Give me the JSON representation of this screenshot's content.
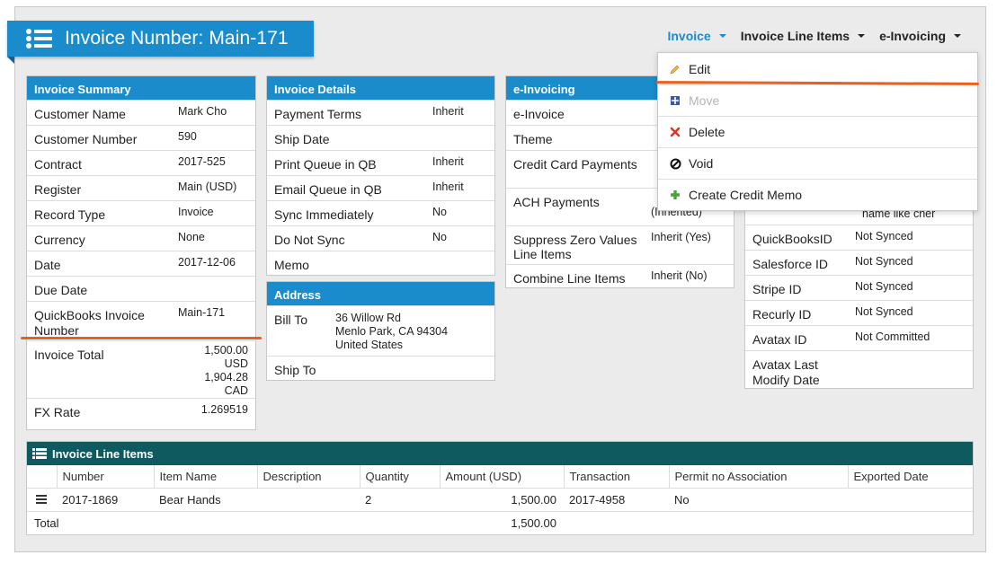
{
  "title": "Invoice Number: Main-171",
  "nav": {
    "invoice": "Invoice",
    "line_items": "Invoice Line Items",
    "einvoicing": "e-Invoicing"
  },
  "dropdown": {
    "edit": "Edit",
    "move": "Move",
    "delete": "Delete",
    "void": "Void",
    "credit_memo": "Create Credit Memo"
  },
  "summary": {
    "header": "Invoice Summary",
    "rows": [
      {
        "label": "Customer Name",
        "value": "Mark Cho"
      },
      {
        "label": "Customer Number",
        "value": "590"
      },
      {
        "label": "Contract",
        "value": "2017-525"
      },
      {
        "label": "Register",
        "value": "Main (USD)"
      },
      {
        "label": "Record Type",
        "value": "Invoice"
      },
      {
        "label": "Currency",
        "value": "None"
      },
      {
        "label": "Date",
        "value": "2017-12-06"
      },
      {
        "label": "Due Date",
        "value": ""
      },
      {
        "label": "QuickBooks Invoice Number",
        "value": "Main-171"
      },
      {
        "label": "Invoice Total",
        "value": "1,500.00 USD 1,904.28 CAD"
      },
      {
        "label": "FX Rate",
        "value": "1.269519"
      }
    ],
    "total_lines": [
      "1,500.00",
      "USD",
      "1,904.28",
      "CAD"
    ]
  },
  "details": {
    "header": "Invoice Details",
    "rows": [
      {
        "label": "Payment Terms",
        "value": "Inherit"
      },
      {
        "label": "Ship Date",
        "value": ""
      },
      {
        "label": "Print Queue in QB",
        "value": "Inherit"
      },
      {
        "label": "Email Queue in QB",
        "value": "Inherit"
      },
      {
        "label": "Sync Immediately",
        "value": "No"
      },
      {
        "label": "Do Not Sync",
        "value": "No"
      },
      {
        "label": "Memo",
        "value": ""
      }
    ]
  },
  "address": {
    "header": "Address",
    "bill_to_label": "Bill To",
    "bill_to_lines": [
      "36 Willow Rd",
      "Menlo Park, CA  94304",
      "United States"
    ],
    "ship_to_label": "Ship To"
  },
  "einvoicing": {
    "header": "e-Invoicing",
    "rows": [
      {
        "label": "e-Invoice",
        "value": ""
      },
      {
        "label": "Theme",
        "value": ""
      },
      {
        "label": "Credit Card Payments",
        "value": ""
      },
      {
        "label": "ACH Payments",
        "value": "(Inherited)"
      },
      {
        "label": "Suppress Zero Values Line Items",
        "value": "Inherit (Yes)"
      },
      {
        "label": "Combine Line Items",
        "value": "Inherit (No)"
      }
    ]
  },
  "sync": {
    "partial_top": "name like cher",
    "rows": [
      {
        "label": "QuickBooksID",
        "value": "Not Synced"
      },
      {
        "label": "Salesforce ID",
        "value": "Not Synced"
      },
      {
        "label": "Stripe ID",
        "value": "Not Synced"
      },
      {
        "label": "Recurly ID",
        "value": "Not Synced"
      },
      {
        "label": "Avatax ID",
        "value": "Not Committed"
      },
      {
        "label": "Avatax Last Modify Date",
        "value": ""
      }
    ]
  },
  "line_items": {
    "header": "Invoice Line Items",
    "columns": [
      "Number",
      "Item Name",
      "Description",
      "Quantity",
      "Amount (USD)",
      "Transaction",
      "Permit no Association",
      "Exported Date"
    ],
    "row": {
      "number": "2017-1869",
      "item": "Bear Hands",
      "description": "",
      "quantity": "2",
      "amount": "1,500.00",
      "transaction": "2017-4958",
      "permit": "No",
      "exported": ""
    },
    "total_label": "Total",
    "total_amount": "1,500.00"
  },
  "colors": {
    "primary": "#1a8ccc",
    "table_header": "#0f5a5e",
    "highlight": "#e8601d"
  }
}
